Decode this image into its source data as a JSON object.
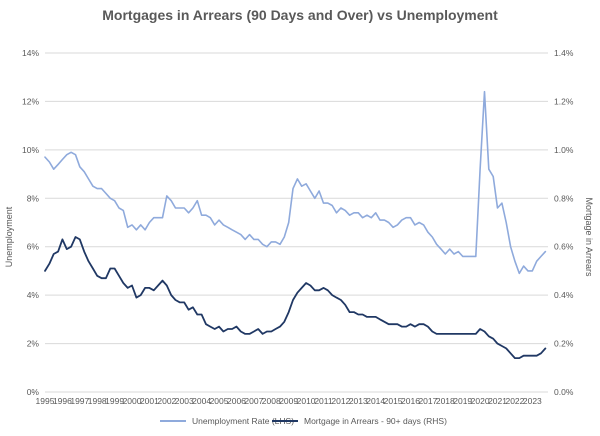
{
  "chart_data": {
    "type": "line",
    "title": "Mortgages in Arrears (90 Days and Over) vs Unemployment",
    "ylabel_left": "Unemployment",
    "ylabel_right": "Mortgage in Arrears",
    "ylim_left": [
      0,
      14
    ],
    "ylim_right": [
      0,
      1.4
    ],
    "y_ticks_left": [
      "0%",
      "2%",
      "4%",
      "6%",
      "8%",
      "10%",
      "12%",
      "14%"
    ],
    "y_ticks_right": [
      "0.0%",
      "0.2%",
      "0.4%",
      "0.6%",
      "0.8%",
      "1.0%",
      "1.2%",
      "1.4%"
    ],
    "x_ticks": [
      "1995",
      "1996",
      "1997",
      "1998",
      "1999",
      "2000",
      "2001",
      "2002",
      "2003",
      "2004",
      "2005",
      "2006",
      "2007",
      "2008",
      "2009",
      "2010",
      "2011",
      "2012",
      "2013",
      "2014",
      "2015",
      "2016",
      "2017",
      "2018",
      "2019",
      "2020",
      "2021",
      "2022",
      "2023"
    ],
    "xlim": [
      1995,
      2023.9
    ],
    "grid": true,
    "legend_position": "bottom",
    "colors": {
      "unemployment": "#8faadc",
      "arrears": "#203864",
      "grid": "#d9d9d9",
      "text": "#595959"
    },
    "series": [
      {
        "name": "Unemployment Rate (LHS)",
        "axis": "left",
        "color": "#8faadc",
        "points": [
          [
            1995.0,
            9.7
          ],
          [
            1995.25,
            9.5
          ],
          [
            1995.5,
            9.2
          ],
          [
            1995.75,
            9.4
          ],
          [
            1996.0,
            9.6
          ],
          [
            1996.25,
            9.8
          ],
          [
            1996.5,
            9.9
          ],
          [
            1996.75,
            9.8
          ],
          [
            1997.0,
            9.3
          ],
          [
            1997.25,
            9.1
          ],
          [
            1997.5,
            8.8
          ],
          [
            1997.75,
            8.5
          ],
          [
            1998.0,
            8.4
          ],
          [
            1998.25,
            8.4
          ],
          [
            1998.5,
            8.2
          ],
          [
            1998.75,
            8.0
          ],
          [
            1999.0,
            7.9
          ],
          [
            1999.25,
            7.6
          ],
          [
            1999.5,
            7.5
          ],
          [
            1999.75,
            6.8
          ],
          [
            2000.0,
            6.9
          ],
          [
            2000.25,
            6.7
          ],
          [
            2000.5,
            6.9
          ],
          [
            2000.75,
            6.7
          ],
          [
            2001.0,
            7.0
          ],
          [
            2001.25,
            7.2
          ],
          [
            2001.5,
            7.2
          ],
          [
            2001.75,
            7.2
          ],
          [
            2002.0,
            8.1
          ],
          [
            2002.25,
            7.9
          ],
          [
            2002.5,
            7.6
          ],
          [
            2002.75,
            7.6
          ],
          [
            2003.0,
            7.6
          ],
          [
            2003.25,
            7.4
          ],
          [
            2003.5,
            7.6
          ],
          [
            2003.75,
            7.9
          ],
          [
            2004.0,
            7.3
          ],
          [
            2004.25,
            7.3
          ],
          [
            2004.5,
            7.2
          ],
          [
            2004.75,
            6.9
          ],
          [
            2005.0,
            7.1
          ],
          [
            2005.25,
            6.9
          ],
          [
            2005.5,
            6.8
          ],
          [
            2005.75,
            6.7
          ],
          [
            2006.0,
            6.6
          ],
          [
            2006.25,
            6.5
          ],
          [
            2006.5,
            6.3
          ],
          [
            2006.75,
            6.5
          ],
          [
            2007.0,
            6.3
          ],
          [
            2007.25,
            6.3
          ],
          [
            2007.5,
            6.1
          ],
          [
            2007.75,
            6.0
          ],
          [
            2008.0,
            6.2
          ],
          [
            2008.25,
            6.2
          ],
          [
            2008.5,
            6.1
          ],
          [
            2008.75,
            6.4
          ],
          [
            2009.0,
            7.0
          ],
          [
            2009.25,
            8.4
          ],
          [
            2009.5,
            8.8
          ],
          [
            2009.75,
            8.5
          ],
          [
            2010.0,
            8.6
          ],
          [
            2010.25,
            8.3
          ],
          [
            2010.5,
            8.0
          ],
          [
            2010.75,
            8.3
          ],
          [
            2011.0,
            7.8
          ],
          [
            2011.25,
            7.8
          ],
          [
            2011.5,
            7.7
          ],
          [
            2011.75,
            7.4
          ],
          [
            2012.0,
            7.6
          ],
          [
            2012.25,
            7.5
          ],
          [
            2012.5,
            7.3
          ],
          [
            2012.75,
            7.4
          ],
          [
            2013.0,
            7.4
          ],
          [
            2013.25,
            7.2
          ],
          [
            2013.5,
            7.3
          ],
          [
            2013.75,
            7.2
          ],
          [
            2014.0,
            7.4
          ],
          [
            2014.25,
            7.1
          ],
          [
            2014.5,
            7.1
          ],
          [
            2014.75,
            7.0
          ],
          [
            2015.0,
            6.8
          ],
          [
            2015.25,
            6.9
          ],
          [
            2015.5,
            7.1
          ],
          [
            2015.75,
            7.2
          ],
          [
            2016.0,
            7.2
          ],
          [
            2016.25,
            6.9
          ],
          [
            2016.5,
            7.0
          ],
          [
            2016.75,
            6.9
          ],
          [
            2017.0,
            6.6
          ],
          [
            2017.25,
            6.4
          ],
          [
            2017.5,
            6.1
          ],
          [
            2017.75,
            5.9
          ],
          [
            2018.0,
            5.7
          ],
          [
            2018.25,
            5.9
          ],
          [
            2018.5,
            5.7
          ],
          [
            2018.75,
            5.8
          ],
          [
            2019.0,
            5.6
          ],
          [
            2019.25,
            5.6
          ],
          [
            2019.5,
            5.6
          ],
          [
            2019.75,
            5.6
          ],
          [
            2020.0,
            9.2
          ],
          [
            2020.25,
            12.4
          ],
          [
            2020.5,
            9.2
          ],
          [
            2020.75,
            8.9
          ],
          [
            2021.0,
            7.6
          ],
          [
            2021.25,
            7.8
          ],
          [
            2021.5,
            7.0
          ],
          [
            2021.75,
            6.0
          ],
          [
            2022.0,
            5.4
          ],
          [
            2022.25,
            4.9
          ],
          [
            2022.5,
            5.2
          ],
          [
            2022.75,
            5.0
          ],
          [
            2023.0,
            5.0
          ],
          [
            2023.25,
            5.4
          ],
          [
            2023.5,
            5.6
          ],
          [
            2023.75,
            5.8
          ]
        ]
      },
      {
        "name": "Mortgage in Arrears - 90+ days (RHS)",
        "axis": "right",
        "color": "#203864",
        "points": [
          [
            1995.0,
            0.5
          ],
          [
            1995.25,
            0.53
          ],
          [
            1995.5,
            0.57
          ],
          [
            1995.75,
            0.58
          ],
          [
            1996.0,
            0.63
          ],
          [
            1996.25,
            0.59
          ],
          [
            1996.5,
            0.6
          ],
          [
            1996.75,
            0.64
          ],
          [
            1997.0,
            0.63
          ],
          [
            1997.25,
            0.58
          ],
          [
            1997.5,
            0.54
          ],
          [
            1997.75,
            0.51
          ],
          [
            1998.0,
            0.48
          ],
          [
            1998.25,
            0.47
          ],
          [
            1998.5,
            0.47
          ],
          [
            1998.75,
            0.51
          ],
          [
            1999.0,
            0.51
          ],
          [
            1999.25,
            0.48
          ],
          [
            1999.5,
            0.45
          ],
          [
            1999.75,
            0.43
          ],
          [
            2000.0,
            0.44
          ],
          [
            2000.25,
            0.39
          ],
          [
            2000.5,
            0.4
          ],
          [
            2000.75,
            0.43
          ],
          [
            2001.0,
            0.43
          ],
          [
            2001.25,
            0.42
          ],
          [
            2001.5,
            0.44
          ],
          [
            2001.75,
            0.46
          ],
          [
            2002.0,
            0.44
          ],
          [
            2002.25,
            0.4
          ],
          [
            2002.5,
            0.38
          ],
          [
            2002.75,
            0.37
          ],
          [
            2003.0,
            0.37
          ],
          [
            2003.25,
            0.34
          ],
          [
            2003.5,
            0.35
          ],
          [
            2003.75,
            0.32
          ],
          [
            2004.0,
            0.32
          ],
          [
            2004.25,
            0.28
          ],
          [
            2004.5,
            0.27
          ],
          [
            2004.75,
            0.26
          ],
          [
            2005.0,
            0.27
          ],
          [
            2005.25,
            0.25
          ],
          [
            2005.5,
            0.26
          ],
          [
            2005.75,
            0.26
          ],
          [
            2006.0,
            0.27
          ],
          [
            2006.25,
            0.25
          ],
          [
            2006.5,
            0.24
          ],
          [
            2006.75,
            0.24
          ],
          [
            2007.0,
            0.25
          ],
          [
            2007.25,
            0.26
          ],
          [
            2007.5,
            0.24
          ],
          [
            2007.75,
            0.25
          ],
          [
            2008.0,
            0.25
          ],
          [
            2008.25,
            0.26
          ],
          [
            2008.5,
            0.27
          ],
          [
            2008.75,
            0.29
          ],
          [
            2009.0,
            0.33
          ],
          [
            2009.25,
            0.38
          ],
          [
            2009.5,
            0.41
          ],
          [
            2009.75,
            0.43
          ],
          [
            2010.0,
            0.45
          ],
          [
            2010.25,
            0.44
          ],
          [
            2010.5,
            0.42
          ],
          [
            2010.75,
            0.42
          ],
          [
            2011.0,
            0.43
          ],
          [
            2011.25,
            0.42
          ],
          [
            2011.5,
            0.4
          ],
          [
            2011.75,
            0.39
          ],
          [
            2012.0,
            0.38
          ],
          [
            2012.25,
            0.36
          ],
          [
            2012.5,
            0.33
          ],
          [
            2012.75,
            0.33
          ],
          [
            2013.0,
            0.32
          ],
          [
            2013.25,
            0.32
          ],
          [
            2013.5,
            0.31
          ],
          [
            2013.75,
            0.31
          ],
          [
            2014.0,
            0.31
          ],
          [
            2014.25,
            0.3
          ],
          [
            2014.5,
            0.29
          ],
          [
            2014.75,
            0.28
          ],
          [
            2015.0,
            0.28
          ],
          [
            2015.25,
            0.28
          ],
          [
            2015.5,
            0.27
          ],
          [
            2015.75,
            0.27
          ],
          [
            2016.0,
            0.28
          ],
          [
            2016.25,
            0.27
          ],
          [
            2016.5,
            0.28
          ],
          [
            2016.75,
            0.28
          ],
          [
            2017.0,
            0.27
          ],
          [
            2017.25,
            0.25
          ],
          [
            2017.5,
            0.24
          ],
          [
            2017.75,
            0.24
          ],
          [
            2018.0,
            0.24
          ],
          [
            2018.25,
            0.24
          ],
          [
            2018.5,
            0.24
          ],
          [
            2018.75,
            0.24
          ],
          [
            2019.0,
            0.24
          ],
          [
            2019.25,
            0.24
          ],
          [
            2019.5,
            0.24
          ],
          [
            2019.75,
            0.24
          ],
          [
            2020.0,
            0.26
          ],
          [
            2020.25,
            0.25
          ],
          [
            2020.5,
            0.23
          ],
          [
            2020.75,
            0.22
          ],
          [
            2021.0,
            0.2
          ],
          [
            2021.25,
            0.19
          ],
          [
            2021.5,
            0.18
          ],
          [
            2021.75,
            0.16
          ],
          [
            2022.0,
            0.14
          ],
          [
            2022.25,
            0.14
          ],
          [
            2022.5,
            0.15
          ],
          [
            2022.75,
            0.15
          ],
          [
            2023.0,
            0.15
          ],
          [
            2023.25,
            0.15
          ],
          [
            2023.5,
            0.16
          ],
          [
            2023.75,
            0.18
          ]
        ]
      }
    ]
  }
}
